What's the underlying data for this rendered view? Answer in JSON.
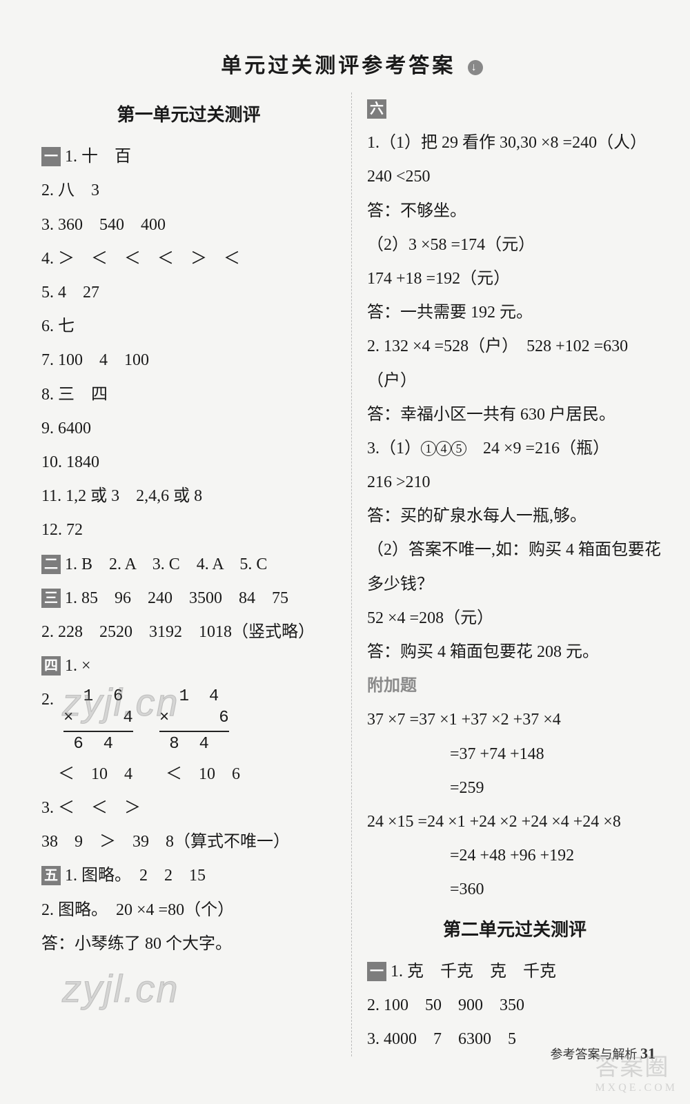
{
  "page": {
    "title": "单元过关测评参考答案",
    "footer_label": "参考答案与解析",
    "footer_page": "31",
    "watermark": "zyjl.cn",
    "corner_watermark_top": "答案圈",
    "corner_watermark_sub": "MXQE.COM"
  },
  "left": {
    "unit1_heading": "第一单元过关测评",
    "sec1_label": "一",
    "s1_1": "1. 十　百",
    "s1_2": "2. 八　3",
    "s1_3": "3. 360　540　400",
    "s1_4": "4. ＞　＜　＜　＜　＞　＜",
    "s1_5": "5. 4　27",
    "s1_6": "6. 七",
    "s1_7": "7. 100　4　100",
    "s1_8": "8. 三　四",
    "s1_9": "9. 6400",
    "s1_10": "10. 1840",
    "s1_11": "11. 1,2 或 3　2,4,6 或 8",
    "s1_12": "12. 72",
    "sec2_label": "二",
    "s2": "1. B　2. A　3. C　4. A　5. C",
    "sec3_label": "三",
    "s3_1": "1. 85　96　240　3500　84　75",
    "s3_2": "2. 228　2520　3192　1018（竖式略）",
    "sec4_label": "四",
    "s4_1": "1. ×",
    "s4_2_prefix": "2.",
    "vcalc1": {
      "top": "  1  6",
      "mid": "×     4",
      "bot": " 6  4"
    },
    "vcalc2": {
      "top": "  1  4",
      "mid": "×     6",
      "bot": " 8  4"
    },
    "s4_2b": "　＜　10　4　　＜　10　6",
    "s4_3": "3. ＜　＜　＞",
    "s4_line": "38　9　＞　39　8（算式不唯一）",
    "sec5_label": "五",
    "s5_1": "1. 图略。　2　2　15",
    "s5_2": "2. 图略。　20 ×4 =80（个）",
    "s5_ans": "答：小琴练了 80 个大字。"
  },
  "right": {
    "sec6_label": "六",
    "s6_1a": "1.（1）把 29 看作 30,30 ×8 =240（人）",
    "s6_1b": "240 <250",
    "s6_1c": "答：不够坐。",
    "s6_1d": "（2）3 ×58 =174（元）",
    "s6_1e": "174 +18 =192（元）",
    "s6_1f": "答：一共需要 192 元。",
    "s6_2a": "2. 132 ×4 =528（户）　528 +102 =630（户）",
    "s6_2b": "答：幸福小区一共有 630 户居民。",
    "s6_3a_pre": "3.（1）",
    "s6_3a_c1": "1",
    "s6_3a_c2": "4",
    "s6_3a_c3": "5",
    "s6_3a_post": "　24 ×9 =216（瓶）",
    "s6_3b": "216 >210",
    "s6_3c": "答：买的矿泉水每人一瓶,够。",
    "s6_3d": "（2）答案不唯一,如：购买 4 箱面包要花",
    "s6_3e": "多少钱？",
    "s6_3f": "52 ×4 =208（元）",
    "s6_3g": "答：购买 4 箱面包要花 208 元。",
    "extra_heading": "附加题",
    "ex1": "37 ×7 =37 ×1 +37 ×2 +37 ×4",
    "ex2": "=37 +74 +148",
    "ex3": "=259",
    "ex4": "24 ×15 =24 ×1 +24 ×2 +24 ×4 +24 ×8",
    "ex5": "=24 +48 +96 +192",
    "ex6": "=360",
    "unit2_heading": "第二单元过关测评",
    "u2_sec1_label": "一",
    "u2_1": "1. 克　千克　克　千克",
    "u2_2": "2. 100　50　900　350",
    "u2_3": "3. 4000　7　6300　5"
  }
}
